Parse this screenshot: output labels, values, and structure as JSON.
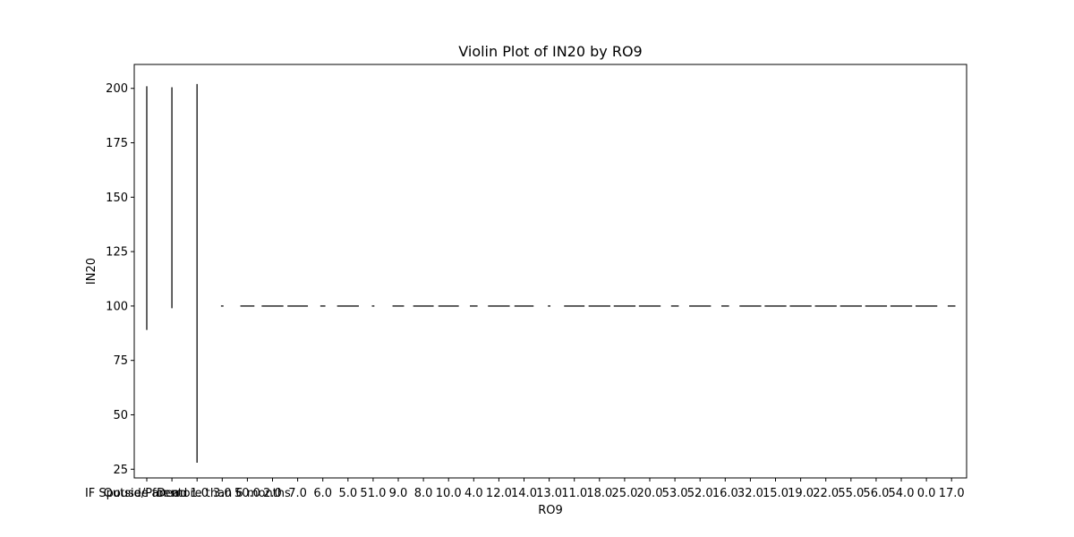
{
  "chart_data": {
    "type": "violin",
    "title": "Violin Plot of IN20 by RO9",
    "xlabel": "RO9",
    "ylabel": "IN20",
    "ylim": [
      21,
      211
    ],
    "yticks": [
      25,
      50,
      75,
      100,
      125,
      150,
      175,
      200
    ],
    "grid": false,
    "categories": [
      "IF Spouse/Parent: 1.0",
      "Dead",
      "Outside for more than 6 months",
      "3.0",
      "50.0",
      "2.0",
      "7.0",
      "6.0",
      "5.0",
      "51.0",
      "9.0",
      "8.0",
      "10.0",
      "4.0",
      "12.0",
      "14.0",
      "13.0",
      "11.0",
      "18.0",
      "25.0",
      "20.0",
      "53.0",
      "52.0",
      "16.0",
      "32.0",
      "15.0",
      "19.0",
      "22.0",
      "55.0",
      "56.0",
      "54.0",
      "0.0",
      "17.0"
    ],
    "ranges": [
      [
        89,
        201
      ],
      [
        99,
        200.5
      ],
      [
        28,
        202
      ],
      [
        100,
        100
      ],
      [
        100,
        100
      ],
      [
        100,
        100
      ],
      [
        100,
        100
      ],
      [
        100,
        100
      ],
      [
        100,
        100
      ],
      [
        100,
        100
      ],
      [
        100,
        100
      ],
      [
        100,
        100
      ],
      [
        100,
        100
      ],
      [
        100,
        100
      ],
      [
        100,
        100
      ],
      [
        100,
        100
      ],
      [
        100,
        100
      ],
      [
        100,
        100
      ],
      [
        100,
        100
      ],
      [
        100,
        100
      ],
      [
        100,
        100
      ],
      [
        100,
        100
      ],
      [
        100,
        100
      ],
      [
        100,
        100
      ],
      [
        100,
        100
      ],
      [
        100,
        100
      ],
      [
        100,
        100
      ],
      [
        100,
        100
      ],
      [
        100,
        100
      ],
      [
        100,
        100
      ],
      [
        100,
        100
      ],
      [
        100,
        100
      ],
      [
        100,
        100
      ]
    ],
    "constant_widths": [
      0.45,
      0.55,
      0.85,
      0.1,
      0.55,
      0.85,
      0.8,
      0.2,
      0.85,
      0.1,
      0.45,
      0.8,
      0.8,
      0.3,
      0.85,
      0.75,
      0.1,
      0.8,
      0.85,
      0.85,
      0.85,
      0.3,
      0.85,
      0.3,
      0.85,
      0.85,
      0.85,
      0.85,
      0.85,
      0.85,
      0.85,
      0.85,
      0.3
    ]
  }
}
